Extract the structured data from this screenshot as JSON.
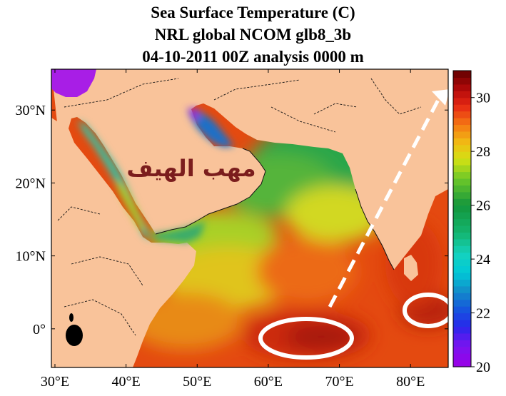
{
  "title": {
    "line1": "Sea Surface Temperature (C)",
    "line2": "NRL global NCOM glb8_3b",
    "line3": "04-10-2011 00Z analysis   0000 m"
  },
  "map": {
    "lon_range": [
      29.5,
      85.3
    ],
    "lat_range": [
      -5.3,
      35.6
    ],
    "lon_ticks": [
      {
        "value": 30,
        "label": "30°E"
      },
      {
        "value": 40,
        "label": "40°E"
      },
      {
        "value": 50,
        "label": "50°E"
      },
      {
        "value": 60,
        "label": "60°E"
      },
      {
        "value": 70,
        "label": "70°E"
      },
      {
        "value": 80,
        "label": "80°E"
      }
    ],
    "lat_ticks": [
      {
        "value": 0,
        "label": "0°"
      },
      {
        "value": 10,
        "label": "10°N"
      },
      {
        "value": 20,
        "label": "20°N"
      },
      {
        "value": 30,
        "label": "30°N"
      }
    ],
    "land_color": "#f9c39a",
    "annotation_text": "مهب الهيف",
    "annotation_color": "#7b1d1d",
    "marker_color": "#ffffff"
  },
  "colorbar": {
    "min": 20,
    "max": 31,
    "ticks": [
      {
        "value": 20,
        "label": "20"
      },
      {
        "value": 22,
        "label": "22"
      },
      {
        "value": 24,
        "label": "24"
      },
      {
        "value": 26,
        "label": "26"
      },
      {
        "value": 28,
        "label": "28"
      },
      {
        "value": 30,
        "label": "30"
      }
    ]
  }
}
